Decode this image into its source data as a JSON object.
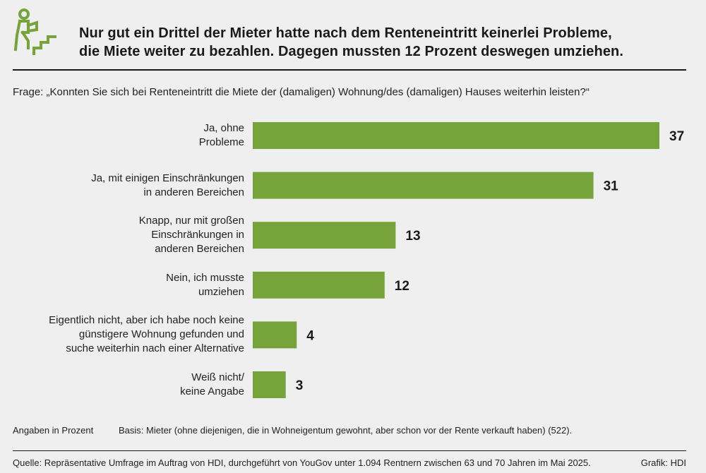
{
  "header": {
    "icon": "person-climbing-stairs-icon",
    "title_line1": "Nur gut ein Drittel der Mieter hatte nach dem Renteneintritt keinerlei Probleme,",
    "title_line2": "die Miete weiter zu bezahlen. Dagegen mussten 12 Prozent deswegen umziehen."
  },
  "question": "Frage: „Konnten Sie sich bei Renteneintritt die Miete der (damaligen) Wohnung/des (damaligen) Hauses weiterhin leisten?“",
  "colors": {
    "bar": "#77a33b",
    "text": "#1a1a1a",
    "background": "#efefef"
  },
  "chart_data": {
    "type": "bar",
    "orientation": "horizontal",
    "categories": [
      [
        "Ja, ohne",
        "Probleme"
      ],
      [
        "Ja, mit einigen Einschränkungen",
        "in anderen Bereichen"
      ],
      [
        "Knapp, nur mit großen",
        "Einschränkungen in",
        "anderen Bereichen"
      ],
      [
        "Nein, ich musste",
        "umziehen"
      ],
      [
        "Eigentlich nicht, aber ich habe noch keine",
        "günstigere Wohnung gefunden und",
        "suche weiterhin nach einer Alternative"
      ],
      [
        "Weiß nicht/",
        "keine Angabe"
      ]
    ],
    "values": [
      37,
      31,
      13,
      12,
      4,
      3
    ],
    "title": "",
    "xlabel": "",
    "ylabel": "",
    "grid": false,
    "legend": "none"
  },
  "footer": {
    "units": "Angaben in Prozent",
    "basis": "Basis: Mieter (ohne diejenigen, die in Wohneigentum gewohnt, aber schon vor der Rente verkauft haben) (522).",
    "source": "Quelle: Repräsentative Umfrage im Auftrag von HDI, durchgeführt von YouGov unter 1.094 Rentnern zwischen 63 und 70 Jahren im Mai 2025.",
    "credit": "Grafik: HDI"
  }
}
